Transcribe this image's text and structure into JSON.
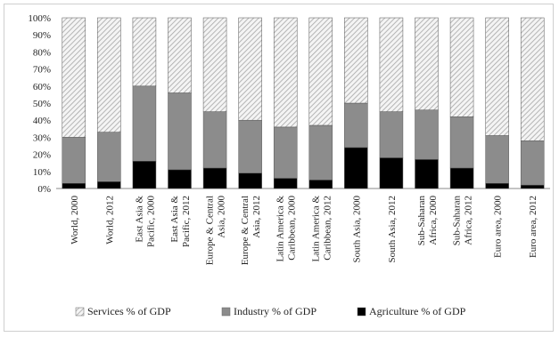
{
  "chart_data": {
    "type": "bar",
    "stacked": true,
    "categories": [
      [
        "World, 2000"
      ],
      [
        "World, 2012"
      ],
      [
        "East Asia &",
        "Pacific, 2000"
      ],
      [
        "East Asia &",
        "Pacific, 2012"
      ],
      [
        "Europe & Central",
        "Asia, 2000"
      ],
      [
        "Europe & Central",
        "Asia, 2012"
      ],
      [
        "Latin America &",
        "Caribbean, 2000"
      ],
      [
        "Latin America &",
        "Caribbean, 2012"
      ],
      [
        "South Asia, 2000"
      ],
      [
        "South Asia, 2012"
      ],
      [
        "Sub-Saharan",
        "Africa, 2000"
      ],
      [
        "Sub-Saharan",
        "Africa, 2012"
      ],
      [
        "Euro area, 2000"
      ],
      [
        "Euro area, 2012"
      ]
    ],
    "series": [
      {
        "name": "Agriculture % of GDP",
        "values": [
          3,
          4,
          16,
          11,
          12,
          9,
          6,
          5,
          24,
          18,
          17,
          12,
          3,
          2
        ]
      },
      {
        "name": "Industry % of GDP",
        "values": [
          27,
          29,
          44,
          45,
          33,
          31,
          30,
          32,
          26,
          27,
          29,
          30,
          28,
          26
        ]
      },
      {
        "name": "Services % of GDP",
        "values": [
          70,
          67,
          40,
          44,
          55,
          60,
          64,
          63,
          50,
          55,
          54,
          58,
          69,
          72
        ]
      }
    ],
    "legend_order": [
      "Services % of GDP",
      "Industry % of GDP",
      "Agriculture % of GDP"
    ],
    "legend_position": "bottom",
    "ylim": [
      0,
      100
    ],
    "yticks": [
      "0%",
      "10%",
      "20%",
      "30%",
      "40%",
      "50%",
      "60%",
      "70%",
      "80%",
      "90%",
      "100%"
    ],
    "grid": false,
    "colors": {
      "Agriculture % of GDP": "#000000",
      "Industry % of GDP": "#8c8c8c",
      "Services % of GDP": "hatched-light-gray"
    },
    "title": "",
    "xlabel": "",
    "ylabel": ""
  }
}
